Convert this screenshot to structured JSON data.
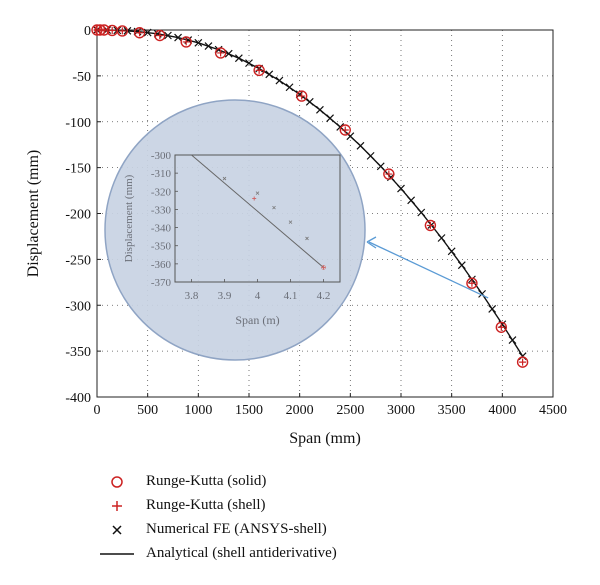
{
  "chart_data": {
    "type": "line",
    "xlabel": "Span (mm)",
    "ylabel": "Displacement (mm)",
    "xlim": [
      0,
      4500
    ],
    "ylim": [
      -400,
      0
    ],
    "x_ticks": [
      "0",
      "500",
      "1000",
      "1500",
      "2000",
      "2500",
      "3000",
      "3500",
      "4000",
      "4500"
    ],
    "y_ticks": [
      "0",
      "-50",
      "-100",
      "-150",
      "-200",
      "-250",
      "-300",
      "-350",
      "-400"
    ],
    "grid": "dotted",
    "legend_position": "below",
    "colors": {
      "rk_solid": "#cc2222",
      "rk_shell": "#cc2222",
      "fe": "#111111",
      "analytical": "#111111",
      "zoom_fill": "#c8d3e3",
      "zoom_border": "#8fa4c4",
      "arrow": "#5b9bd5"
    },
    "series": [
      {
        "name": "Runge-Kutta (solid)",
        "marker": "circle",
        "x": [
          0,
          30,
          70,
          150,
          250,
          420,
          620,
          880,
          1220,
          1600,
          2020,
          2450,
          2880,
          3290,
          3700,
          3990,
          4200
        ],
        "y": [
          0,
          0,
          0,
          -0.5,
          -1,
          -3,
          -6,
          -13,
          -25,
          -44,
          -72,
          -109,
          -157,
          -213,
          -276,
          -324,
          -362
        ]
      },
      {
        "name": "Runge-Kutta (shell)",
        "marker": "plus",
        "x": [
          0,
          30,
          70,
          150,
          250,
          420,
          620,
          880,
          1220,
          1600,
          2020,
          2450,
          2880,
          3290,
          3700,
          3990,
          4200
        ],
        "y": [
          0,
          0,
          0,
          -0.5,
          -1,
          -3,
          -6,
          -13,
          -25,
          -44,
          -72,
          -109,
          -157,
          -213,
          -276,
          -324,
          -362
        ]
      },
      {
        "name": "Numerical FE (ANSYS-shell)",
        "marker": "x",
        "x": [
          0,
          100,
          200,
          300,
          400,
          500,
          600,
          700,
          800,
          900,
          1000,
          1100,
          1200,
          1300,
          1400,
          1500,
          1600,
          1700,
          1800,
          1900,
          2000,
          2100,
          2200,
          2300,
          2400,
          2500,
          2600,
          2700,
          2800,
          2900,
          3000,
          3100,
          3200,
          3300,
          3400,
          3500,
          3600,
          3700,
          3800,
          3900,
          4000,
          4100,
          4200
        ],
        "y": [
          0,
          -0.1,
          -0.4,
          -0.9,
          -1.7,
          -2.8,
          -4.2,
          -6,
          -8.2,
          -11,
          -14,
          -17.5,
          -21.5,
          -25.8,
          -30.7,
          -36.1,
          -42,
          -48.3,
          -55.1,
          -62.4,
          -70.1,
          -78.3,
          -87,
          -96.1,
          -105.7,
          -115.7,
          -126.2,
          -137.2,
          -148.6,
          -160.5,
          -172.8,
          -185.6,
          -198.9,
          -212.5,
          -226.7,
          -241.2,
          -256.3,
          -271.8,
          -287.6,
          -304,
          -320.7,
          -337.9,
          -355.5
        ]
      },
      {
        "name": "Analytical (shell antiderivative)",
        "marker": "line",
        "x": [
          0,
          200,
          400,
          600,
          800,
          1000,
          1200,
          1400,
          1600,
          1800,
          2000,
          2200,
          2400,
          2600,
          2800,
          3000,
          3200,
          3400,
          3600,
          3800,
          4000,
          4200
        ],
        "y": [
          0,
          -0.4,
          -1.7,
          -4.2,
          -8.2,
          -14,
          -21.5,
          -30.7,
          -42,
          -55.1,
          -70.1,
          -87,
          -105.7,
          -126.2,
          -148.6,
          -172.8,
          -198.9,
          -226.7,
          -256.3,
          -287.6,
          -320.7,
          -355.5
        ]
      }
    ],
    "inset": {
      "xlabel": "Span (m)",
      "ylabel": "Displacement (mm)",
      "xlim": [
        3.75,
        4.25
      ],
      "ylim": [
        -370,
        -300
      ],
      "x_ticks": [
        "3.8",
        "3.9",
        "4",
        "4.1",
        "4.2"
      ],
      "y_ticks": [
        "-300",
        "-310",
        "-320",
        "-330",
        "-340",
        "-350",
        "-360",
        "-370"
      ],
      "line": {
        "x": [
          3.8,
          4.2
        ],
        "y": [
          -300,
          -362
        ]
      },
      "plus_points": {
        "x": [
          3.99,
          4.2
        ],
        "y": [
          -324,
          -362
        ]
      },
      "circle_points": {
        "x": [
          4.2
        ],
        "y": [
          -362
        ]
      },
      "x_points": {
        "x": [
          3.9,
          4.0,
          4.05,
          4.1,
          4.15
        ],
        "y": [
          -313,
          -321,
          -329,
          -337,
          -346
        ]
      }
    }
  },
  "legend": {
    "items": [
      {
        "label": "Runge-Kutta (solid)",
        "symbol": "circle"
      },
      {
        "label": "Runge-Kutta (shell)",
        "symbol": "plus"
      },
      {
        "label": "Numerical FE (ANSYS-shell)",
        "symbol": "x"
      },
      {
        "label": "Analytical (shell antiderivative)",
        "symbol": "line"
      }
    ]
  }
}
